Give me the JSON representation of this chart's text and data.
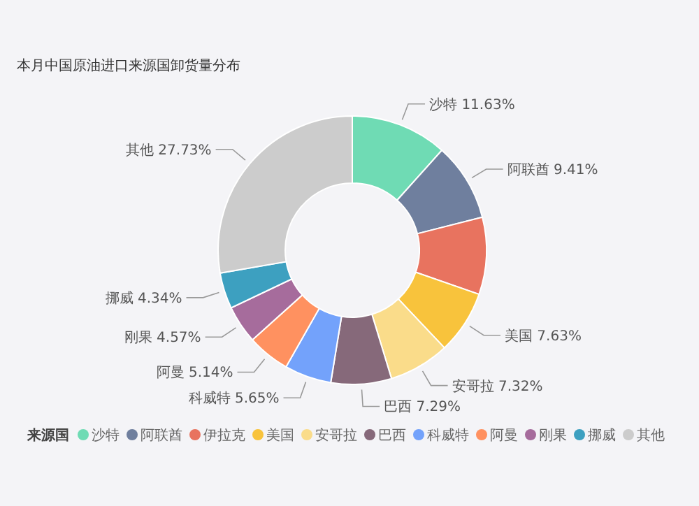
{
  "chart_data": {
    "type": "donut",
    "title": "本月中国原油进口来源国卸货量分布",
    "legend_title": "来源国",
    "legend": "bottom",
    "categories": [
      "沙特",
      "阿联酋",
      "伊拉克",
      "美国",
      "安哥拉",
      "巴西",
      "科威特",
      "阿曼",
      "刚果",
      "挪威",
      "其他"
    ],
    "values": [
      11.63,
      9.41,
      9.29,
      7.63,
      7.32,
      7.29,
      5.65,
      5.14,
      4.57,
      4.34,
      27.73
    ],
    "value_labels": [
      "沙特 11.63%",
      "阿联酋 9.41%",
      null,
      "美国 7.63%",
      "安哥拉 7.32%",
      "巴西 7.29%",
      "科威特 5.65%",
      "阿曼 5.14%",
      "刚果 4.57%",
      "挪威 4.34%",
      "其他 27.73%"
    ],
    "colors": [
      "#6fdbb4",
      "#6f7f9e",
      "#e8735f",
      "#f8c33c",
      "#fadc8a",
      "#86697a",
      "#73a2fb",
      "#ff9160",
      "#a66c9c",
      "#3da0c0",
      "#cccccc"
    ]
  }
}
